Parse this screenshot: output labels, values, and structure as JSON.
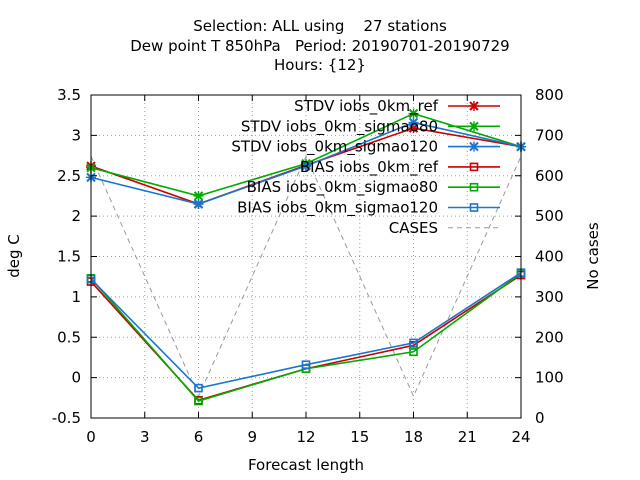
{
  "chart_data": {
    "type": "line",
    "title_lines": [
      "Selection: ALL using    27 stations",
      "Dew point T 850hPa   Period: 20190701-20190729",
      "Hours: {12}"
    ],
    "xlabel": "Forecast length",
    "ylabel": "deg C",
    "y2label": "No cases",
    "x_ticks": [
      0,
      3,
      6,
      9,
      12,
      15,
      18,
      21,
      24
    ],
    "y_ticks": [
      -0.5,
      0,
      0.5,
      1,
      1.5,
      2,
      2.5,
      3,
      3.5
    ],
    "y_tick_labels": [
      "-0.5",
      "0",
      "0.5",
      "1",
      "1.5",
      "2",
      "2.5",
      "3",
      "3.5"
    ],
    "y2_ticks": [
      0,
      100,
      200,
      300,
      400,
      500,
      600,
      700,
      800
    ],
    "xlim": [
      0,
      24
    ],
    "ylim": [
      -0.5,
      3.5
    ],
    "y2lim": [
      0,
      800
    ],
    "grid": true,
    "legend_placement": "top-right",
    "x": [
      0,
      6,
      12,
      18,
      24
    ],
    "series": [
      {
        "name": "STDV iobs_0km_ref",
        "color": "#cc0000",
        "marker": "x",
        "axis": "y1",
        "values": [
          2.62,
          2.15,
          2.63,
          3.09,
          2.86
        ]
      },
      {
        "name": "STDV iobs_0km_sigmao80",
        "color": "#00aa00",
        "marker": "x",
        "axis": "y1",
        "values": [
          2.6,
          2.25,
          2.65,
          3.27,
          2.86
        ]
      },
      {
        "name": "STDV iobs_0km_sigmao120",
        "color": "#1a75cf",
        "marker": "x",
        "axis": "y1",
        "values": [
          2.48,
          2.15,
          2.62,
          3.16,
          2.86
        ]
      },
      {
        "name": "BIAS iobs_0km_ref",
        "color": "#cc0000",
        "marker": "square",
        "axis": "y1",
        "values": [
          1.19,
          -0.28,
          0.11,
          0.4,
          1.27
        ]
      },
      {
        "name": "BIAS iobs_0km_sigmao80",
        "color": "#00aa00",
        "marker": "square",
        "axis": "y1",
        "values": [
          1.23,
          -0.29,
          0.11,
          0.32,
          1.29
        ]
      },
      {
        "name": "BIAS iobs_0km_sigmao120",
        "color": "#1a75cf",
        "marker": "square",
        "axis": "y1",
        "values": [
          1.22,
          -0.13,
          0.16,
          0.43,
          1.3
        ]
      },
      {
        "name": "CASES",
        "color": "#999999",
        "marker": "none",
        "dashed": true,
        "axis": "y2",
        "values": [
          648,
          54,
          648,
          54,
          648
        ]
      }
    ]
  }
}
